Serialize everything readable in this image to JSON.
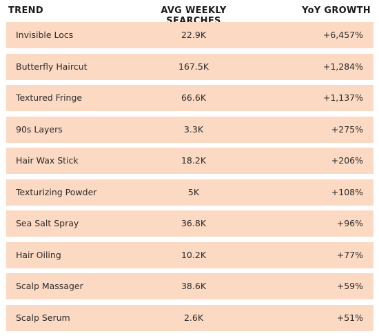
{
  "header": {
    "trend": "TREND",
    "avg": "AVG WEEKLY SEARCHES",
    "yoy": "YoY GROWTH"
  },
  "rows": [
    {
      "trend": "Invisible Locs",
      "avg": "22.9K",
      "yoy": "+6,457%"
    },
    {
      "trend": "Butterfly Haircut",
      "avg": "167.5K",
      "yoy": "+1,284%"
    },
    {
      "trend": "Textured Fringe",
      "avg": "66.6K",
      "yoy": "+1,137%"
    },
    {
      "trend": "90s Layers",
      "avg": "3.3K",
      "yoy": "+275%"
    },
    {
      "trend": "Hair Wax Stick",
      "avg": "18.2K",
      "yoy": "+206%"
    },
    {
      "trend": "Texturizing Powder",
      "avg": "5K",
      "yoy": "+108%"
    },
    {
      "trend": "Sea Salt Spray",
      "avg": "36.8K",
      "yoy": "+96%"
    },
    {
      "trend": "Hair Oiling",
      "avg": "10.2K",
      "yoy": "+77%"
    },
    {
      "trend": "Scalp Massager",
      "avg": "38.6K",
      "yoy": "+59%"
    },
    {
      "trend": "Scalp Serum",
      "avg": "2.6K",
      "yoy": "+51%"
    }
  ],
  "colors": {
    "row_background": "#fbd9c3",
    "text": "#2b2b2b",
    "header_text": "#1a1a1a"
  }
}
